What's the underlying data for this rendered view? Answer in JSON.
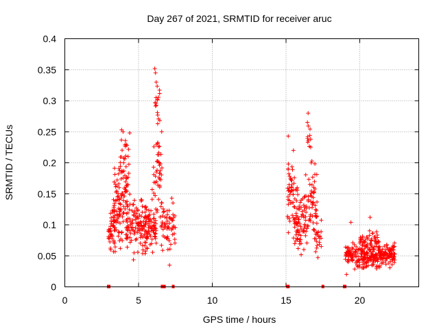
{
  "chart_data": {
    "type": "scatter",
    "title": "Day 267 of 2021, SRMTID for receiver aruc",
    "xlabel": "GPS time / hours",
    "ylabel": "SRMTID / TECUs",
    "xlim": [
      0,
      24
    ],
    "ylim": [
      0,
      0.4
    ],
    "grid": true,
    "x_ticks": [
      0,
      5,
      10,
      15,
      20
    ],
    "x_tick_labels": [
      "0",
      "5",
      "10",
      "15",
      "20"
    ],
    "y_ticks": [
      0,
      0.05,
      0.1,
      0.15,
      0.2,
      0.25,
      0.3,
      0.35,
      0.4
    ],
    "y_tick_labels": [
      "0",
      "0.05",
      "0.1",
      "0.15",
      "0.2",
      "0.25",
      "0.3",
      "0.35",
      "0.4"
    ],
    "series_color": "#ff0000",
    "marker": "plus",
    "clusters": [
      {
        "x_range": [
          2.95,
          3.4
        ],
        "y_center": 0.09,
        "y_spread": 0.03,
        "count": 40
      },
      {
        "x_range": [
          3.3,
          4.3
        ],
        "y_center": 0.13,
        "y_spread": 0.045,
        "count": 110
      },
      {
        "x_range": [
          3.7,
          4.35
        ],
        "y_center": 0.2,
        "y_spread": 0.03,
        "count": 30
      },
      {
        "x_range": [
          4.2,
          5.6
        ],
        "y_center": 0.1,
        "y_spread": 0.03,
        "count": 120
      },
      {
        "x_range": [
          5.5,
          6.2
        ],
        "y_center": 0.09,
        "y_spread": 0.025,
        "count": 60
      },
      {
        "x_range": [
          5.9,
          6.6
        ],
        "y_center": 0.19,
        "y_spread": 0.06,
        "count": 50
      },
      {
        "x_range": [
          6.1,
          6.5
        ],
        "y_center": 0.3,
        "y_spread": 0.035,
        "count": 14
      },
      {
        "x_range": [
          6.5,
          7.5
        ],
        "y_center": 0.1,
        "y_spread": 0.03,
        "count": 60
      },
      {
        "x_range": [
          15.1,
          15.8
        ],
        "y_center": 0.14,
        "y_spread": 0.04,
        "count": 60
      },
      {
        "x_range": [
          15.5,
          16.5
        ],
        "y_center": 0.1,
        "y_spread": 0.03,
        "count": 70
      },
      {
        "x_range": [
          16.3,
          17.1
        ],
        "y_center": 0.14,
        "y_spread": 0.04,
        "count": 55
      },
      {
        "x_range": [
          16.4,
          16.7
        ],
        "y_center": 0.24,
        "y_spread": 0.025,
        "count": 10
      },
      {
        "x_range": [
          17.0,
          17.4
        ],
        "y_center": 0.08,
        "y_spread": 0.025,
        "count": 20
      },
      {
        "x_range": [
          19.0,
          22.4
        ],
        "y_center": 0.05,
        "y_spread": 0.012,
        "count": 280
      },
      {
        "x_range": [
          20.0,
          21.3
        ],
        "y_center": 0.07,
        "y_spread": 0.012,
        "count": 50
      }
    ],
    "outliers": [
      {
        "x": 6.1,
        "y": 0.352
      },
      {
        "x": 6.15,
        "y": 0.345
      },
      {
        "x": 6.2,
        "y": 0.33
      },
      {
        "x": 3.85,
        "y": 0.253
      },
      {
        "x": 3.95,
        "y": 0.25
      },
      {
        "x": 4.4,
        "y": 0.248
      },
      {
        "x": 16.5,
        "y": 0.28
      },
      {
        "x": 16.45,
        "y": 0.265
      },
      {
        "x": 15.15,
        "y": 0.243
      },
      {
        "x": 15.5,
        "y": 0.22
      },
      {
        "x": 20.7,
        "y": 0.112
      },
      {
        "x": 19.4,
        "y": 0.104
      },
      {
        "x": 19.1,
        "y": 0.02
      },
      {
        "x": 7.25,
        "y": 0.143
      },
      {
        "x": 7.1,
        "y": 0.035
      }
    ],
    "zero_markers_x": [
      2.95,
      3.0,
      6.6,
      6.7,
      6.75,
      7.35,
      15.1,
      15.15,
      17.5,
      18.95,
      19.0
    ]
  }
}
